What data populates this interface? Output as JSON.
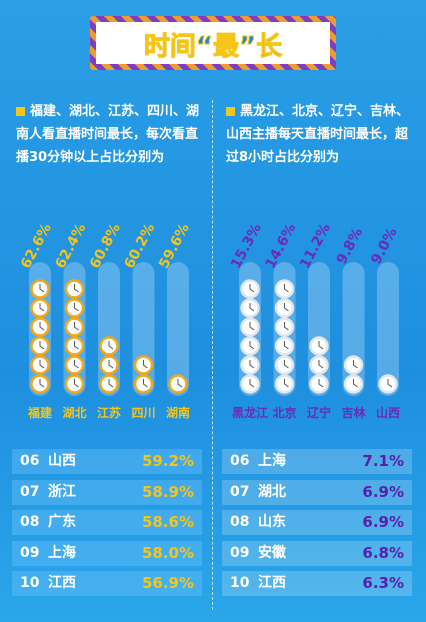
{
  "title": "时间“最”长",
  "chart_data": [
    {
      "type": "bar",
      "subtitle": "福建、湖北、江苏、四川、湖南人看直播时间最长，每次看直播30分钟以上占比分别为",
      "categories": [
        "福建",
        "湖北",
        "江苏",
        "四川",
        "湖南"
      ],
      "values": [
        62.6,
        62.4,
        60.8,
        60.2,
        59.6
      ],
      "value_labels": [
        "62.6%",
        "62.4%",
        "60.8%",
        "60.2%",
        "59.6%"
      ],
      "ylim": [
        59,
        63
      ],
      "color": "#f5c518"
    },
    {
      "type": "bar",
      "subtitle": "黑龙江、北京、辽宁、吉林、山西主播每天直播时间最长，超过8小时占比分别为",
      "categories": [
        "黑龙江",
        "北京",
        "辽宁",
        "吉林",
        "山西"
      ],
      "values": [
        15.3,
        14.6,
        11.2,
        9.8,
        9.0
      ],
      "value_labels": [
        "15.3%",
        "14.6%",
        "11.2%",
        "9.8%",
        "9.0%"
      ],
      "ylim": [
        8,
        16
      ],
      "color": "#6a2bb8"
    }
  ],
  "rankings": [
    [
      [
        "06",
        "山西",
        "59.2%"
      ],
      [
        "07",
        "浙江",
        "58.9%"
      ],
      [
        "08",
        "广东",
        "58.6%"
      ],
      [
        "09",
        "上海",
        "58.0%"
      ],
      [
        "10",
        "江西",
        "56.9%"
      ]
    ],
    [
      [
        "06",
        "上海",
        "7.1%"
      ],
      [
        "07",
        "湖北",
        "6.9%"
      ],
      [
        "08",
        "山东",
        "6.9%"
      ],
      [
        "09",
        "安徽",
        "6.8%"
      ],
      [
        "10",
        "江西",
        "6.3%"
      ]
    ]
  ]
}
